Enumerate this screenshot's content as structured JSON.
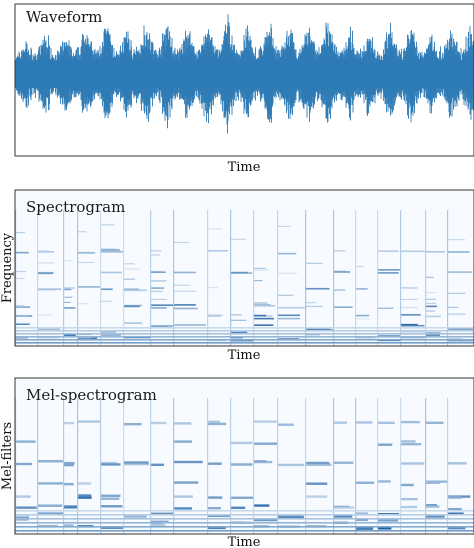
{
  "colors": {
    "waveform": "#2e7bb6",
    "heat_low": "#f7fbff",
    "heat_high": "#08519c",
    "frame": "#333333"
  },
  "chart_data": [
    {
      "type": "line",
      "title": "Waveform",
      "xlabel": "Time",
      "ylabel": "",
      "grid": false,
      "ticks": "none",
      "series": [
        {
          "description_values": "audio amplitude over time (normalized)",
          "envelope": [
            0.35,
            0.45,
            0.55,
            0.6,
            0.5,
            0.55,
            0.75,
            0.65,
            0.8,
            0.6,
            0.7,
            0.9,
            0.7,
            0.85,
            0.6,
            0.75,
            0.8,
            0.7,
            0.9,
            0.75,
            0.65,
            0.7,
            0.85,
            0.6,
            0.8,
            0.7,
            0.95,
            0.75,
            0.6,
            0.7,
            0.55,
            0.65,
            0.8,
            0.6,
            0.75,
            0.55,
            0.7,
            0.6,
            0.8,
            0.65
          ]
        }
      ]
    },
    {
      "type": "heatmap",
      "title": "Spectrogram",
      "xlabel": "Time",
      "ylabel": "Frequency",
      "grid": false,
      "ticks": "none",
      "colormap": "Blues"
    },
    {
      "type": "heatmap",
      "title": "Mel-spectrogram",
      "xlabel": "Time",
      "ylabel": "Mel-filters",
      "grid": false,
      "ticks": "none",
      "colormap": "Blues"
    }
  ]
}
